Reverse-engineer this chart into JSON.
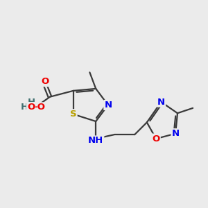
{
  "bg_color": "#ebebeb",
  "bond_color": "#3a3a3a",
  "bond_width": 1.6,
  "dbo": 0.08,
  "atom_colors": {
    "S": "#b8a000",
    "N": "#0000ee",
    "O": "#ee0000",
    "H": "#407070",
    "C": "#3a3a3a"
  },
  "fs": 9.5
}
